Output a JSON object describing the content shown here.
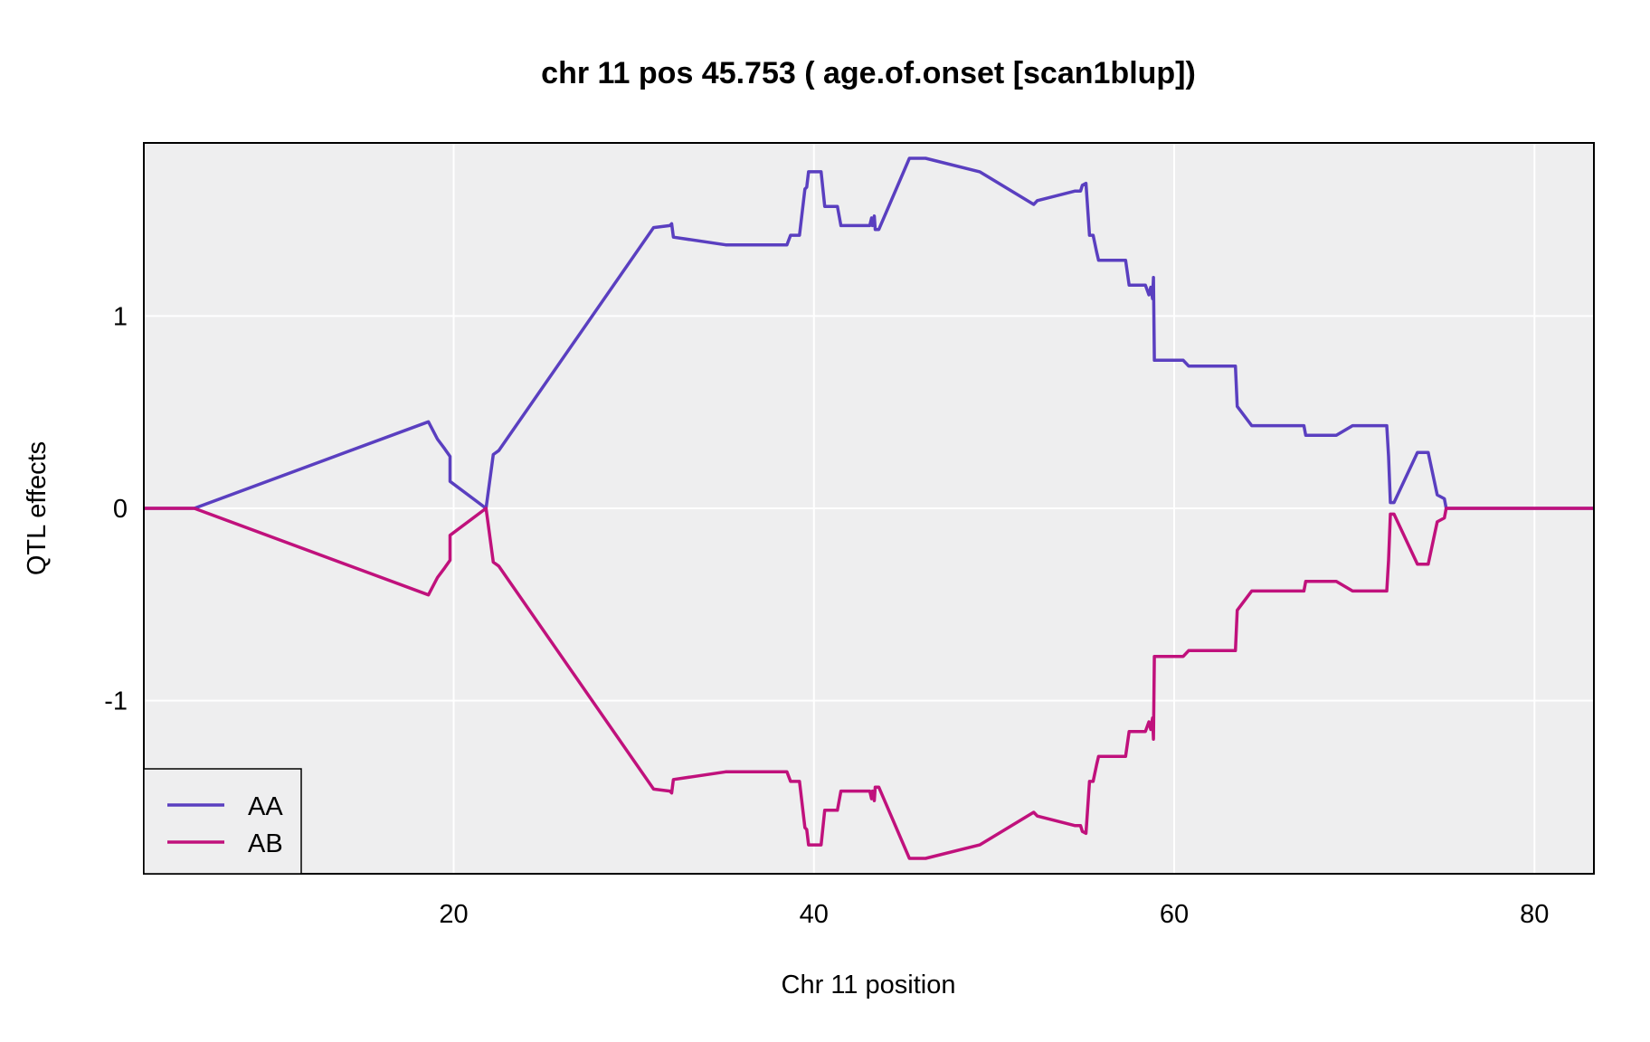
{
  "chart_data": {
    "type": "line",
    "title": "chr 11 pos 45.753 ( age.of.onset  [scan1blup])",
    "xlabel": "Chr 11 position",
    "ylabel": "QTL effects",
    "xlim": [
      2.8,
      83.3
    ],
    "ylim": [
      -1.9,
      1.9
    ],
    "xticks": [
      20,
      40,
      60,
      80
    ],
    "yticks": [
      -1,
      0,
      1
    ],
    "xtick_labels": [
      "20",
      "40",
      "60",
      "80"
    ],
    "ytick_labels": [
      "-1",
      "0",
      "1"
    ],
    "grid": true,
    "legend_position": "bottom-left",
    "colors": {
      "AA": "#5a3fc0",
      "AB": "#c0117c",
      "panel_bg": "#eeeeef",
      "grid": "#ffffff"
    },
    "series": [
      {
        "name": "AA",
        "x": [
          2.8,
          5.6,
          18.6,
          19.1,
          19.5,
          19.8,
          19.8,
          21.8,
          22.2,
          22.5,
          31.1,
          32.0,
          32.1,
          32.2,
          35.1,
          38.5,
          38.7,
          39.2,
          39.5,
          39.6,
          39.7,
          40.4,
          40.6,
          41.3,
          41.5,
          43.1,
          43.2,
          43.25,
          43.35,
          43.4,
          43.6,
          45.3,
          46.2,
          49.2,
          52.2,
          52.4,
          54.5,
          54.8,
          54.9,
          55.1,
          55.3,
          55.5,
          55.7,
          55.8,
          56.1,
          56.2,
          57.3,
          57.5,
          58.4,
          58.6,
          58.7,
          58.8,
          58.85,
          58.9,
          59.0,
          60.5,
          60.8,
          63.4,
          63.5,
          64.3,
          67.2,
          67.3,
          69.0,
          69.9,
          71.8,
          71.9,
          72.0,
          72.2,
          73.5,
          74.1,
          74.6,
          75.0,
          75.1,
          83.3
        ],
        "values": [
          0,
          0,
          0.45,
          0.36,
          0.31,
          0.27,
          0.14,
          0.0,
          0.28,
          0.3,
          1.46,
          1.47,
          1.48,
          1.41,
          1.37,
          1.37,
          1.42,
          1.42,
          1.66,
          1.67,
          1.75,
          1.75,
          1.57,
          1.57,
          1.47,
          1.47,
          1.51,
          1.47,
          1.52,
          1.45,
          1.45,
          1.82,
          1.82,
          1.75,
          1.58,
          1.6,
          1.65,
          1.65,
          1.68,
          1.69,
          1.42,
          1.42,
          1.33,
          1.29,
          1.29,
          1.29,
          1.29,
          1.16,
          1.16,
          1.11,
          1.15,
          1.09,
          1.2,
          0.77,
          0.77,
          0.77,
          0.74,
          0.74,
          0.53,
          0.43,
          0.43,
          0.38,
          0.38,
          0.43,
          0.43,
          0.27,
          0.03,
          0.03,
          0.29,
          0.29,
          0.07,
          0.05,
          0.0,
          0
        ]
      },
      {
        "name": "AB",
        "x": [
          2.8,
          5.6,
          18.6,
          19.1,
          19.5,
          19.8,
          19.8,
          21.8,
          22.2,
          22.5,
          31.1,
          32.0,
          32.1,
          32.2,
          35.1,
          38.5,
          38.7,
          39.2,
          39.5,
          39.6,
          39.7,
          40.4,
          40.6,
          41.3,
          41.5,
          43.1,
          43.2,
          43.25,
          43.35,
          43.4,
          43.6,
          45.3,
          46.2,
          49.2,
          52.2,
          52.4,
          54.5,
          54.8,
          54.9,
          55.1,
          55.3,
          55.5,
          55.7,
          55.8,
          56.1,
          56.2,
          57.3,
          57.5,
          58.4,
          58.6,
          58.7,
          58.8,
          58.85,
          58.9,
          59.0,
          60.5,
          60.8,
          63.4,
          63.5,
          64.3,
          67.2,
          67.3,
          69.0,
          69.9,
          71.8,
          71.9,
          72.0,
          72.2,
          73.5,
          74.1,
          74.6,
          75.0,
          75.1,
          83.3
        ],
        "values": [
          0,
          0,
          -0.45,
          -0.36,
          -0.31,
          -0.27,
          -0.14,
          0.0,
          -0.28,
          -0.3,
          -1.46,
          -1.47,
          -1.48,
          -1.41,
          -1.37,
          -1.37,
          -1.42,
          -1.42,
          -1.66,
          -1.67,
          -1.75,
          -1.75,
          -1.57,
          -1.57,
          -1.47,
          -1.47,
          -1.51,
          -1.47,
          -1.52,
          -1.45,
          -1.45,
          -1.82,
          -1.82,
          -1.75,
          -1.58,
          -1.6,
          -1.65,
          -1.65,
          -1.68,
          -1.69,
          -1.42,
          -1.42,
          -1.33,
          -1.29,
          -1.29,
          -1.29,
          -1.29,
          -1.16,
          -1.16,
          -1.11,
          -1.15,
          -1.09,
          -1.2,
          -0.77,
          -0.77,
          -0.77,
          -0.74,
          -0.74,
          -0.53,
          -0.43,
          -0.43,
          -0.38,
          -0.38,
          -0.43,
          -0.43,
          -0.27,
          -0.03,
          -0.03,
          -0.29,
          -0.29,
          -0.07,
          -0.05,
          0.0,
          0
        ]
      }
    ]
  }
}
